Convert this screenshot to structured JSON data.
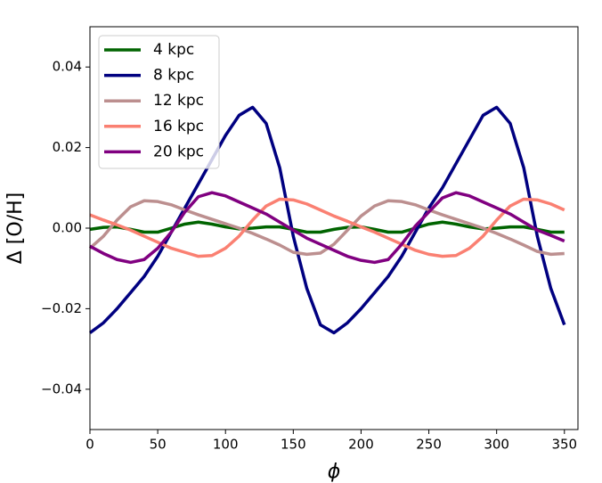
{
  "chart_data": {
    "type": "line",
    "xlabel": "ϕ",
    "ylabel": "Δ [O/H]",
    "x": [
      0,
      10,
      20,
      30,
      40,
      50,
      60,
      70,
      80,
      90,
      100,
      110,
      120,
      130,
      140,
      150,
      160,
      170,
      180,
      190,
      200,
      210,
      220,
      230,
      240,
      250,
      260,
      270,
      280,
      290,
      300,
      310,
      320,
      330,
      340,
      350
    ],
    "series": [
      {
        "name": "4 kpc",
        "color": "#006400",
        "values": [
          -0.0003,
          0.0002,
          0.0003,
          -0.0003,
          -0.001,
          -0.001,
          0,
          0.001,
          0.0015,
          0.001,
          0.0003,
          -0.0002,
          0,
          0.0003,
          0.0003,
          -0.0003,
          -0.001,
          -0.001,
          -0.0003,
          0.0002,
          0.0003,
          -0.0003,
          -0.001,
          -0.001,
          0,
          0.001,
          0.0015,
          0.001,
          0.0003,
          -0.0002,
          0,
          0.0003,
          0.0003,
          -0.0003,
          -0.001,
          -0.001
        ]
      },
      {
        "name": "8 kpc",
        "color": "#000080",
        "values": [
          -0.026,
          -0.0235,
          -0.02,
          -0.016,
          -0.012,
          -0.007,
          -0.001,
          0.005,
          0.011,
          0.017,
          0.023,
          0.028,
          0.03,
          0.026,
          0.015,
          -0.002,
          -0.015,
          -0.024,
          -0.026,
          -0.0235,
          -0.02,
          -0.016,
          -0.012,
          -0.007,
          -0.001,
          0.005,
          0.01,
          0.016,
          0.022,
          0.028,
          0.03,
          0.026,
          0.015,
          -0.002,
          -0.015,
          -0.024
        ]
      },
      {
        "name": "12 kpc",
        "color": "#bc8f8f",
        "values": [
          -0.005,
          -0.002,
          0.002,
          0.0053,
          0.0068,
          0.0066,
          0.0058,
          0.0045,
          0.0033,
          0.0022,
          0.0011,
          0,
          -0.0013,
          -0.0027,
          -0.0042,
          -0.006,
          -0.0065,
          -0.0062,
          -0.004,
          -0.0005,
          0.003,
          0.0055,
          0.0068,
          0.0066,
          0.0058,
          0.0045,
          0.0033,
          0.0022,
          0.0011,
          0,
          -0.0013,
          -0.0027,
          -0.0042,
          -0.0058,
          -0.0065,
          -0.0063
        ]
      },
      {
        "name": "16 kpc",
        "color": "#fa8072",
        "values": [
          0.0033,
          0.002,
          0.0008,
          -0.0005,
          -0.002,
          -0.0035,
          -0.005,
          -0.006,
          -0.007,
          -0.0068,
          -0.005,
          -0.002,
          0.002,
          0.0055,
          0.0072,
          0.007,
          0.006,
          0.0045,
          0.003,
          0.0017,
          0.0003,
          -0.001,
          -0.0025,
          -0.004,
          -0.0055,
          -0.0065,
          -0.007,
          -0.0068,
          -0.005,
          -0.002,
          0.002,
          0.0055,
          0.0072,
          0.007,
          0.006,
          0.0045
        ]
      },
      {
        "name": "20 kpc",
        "color": "#800080",
        "values": [
          -0.0045,
          -0.0063,
          -0.0078,
          -0.0085,
          -0.0078,
          -0.005,
          -0.001,
          0.004,
          0.0078,
          0.0088,
          0.008,
          0.0065,
          0.005,
          0.0035,
          0.0015,
          -0.0005,
          -0.0025,
          -0.004,
          -0.0055,
          -0.007,
          -0.008,
          -0.0085,
          -0.0078,
          -0.004,
          0.0005,
          0.004,
          0.0075,
          0.0088,
          0.008,
          0.0065,
          0.005,
          0.0035,
          0.0015,
          -0.0005,
          -0.0018,
          -0.0032
        ]
      }
    ],
    "xlim": [
      0,
      360
    ],
    "xticks": [
      0,
      50,
      100,
      150,
      200,
      250,
      300,
      350
    ],
    "ylim": [
      -0.05,
      0.05
    ],
    "yticks": [
      {
        "value": -0.04,
        "label": "−0.04"
      },
      {
        "value": -0.02,
        "label": "−0.02"
      },
      {
        "value": 0,
        "label": "0.00"
      },
      {
        "value": 0.02,
        "label": "0.02"
      },
      {
        "value": 0.04,
        "label": "0.04"
      }
    ],
    "legend": "upper left",
    "grid": false
  }
}
